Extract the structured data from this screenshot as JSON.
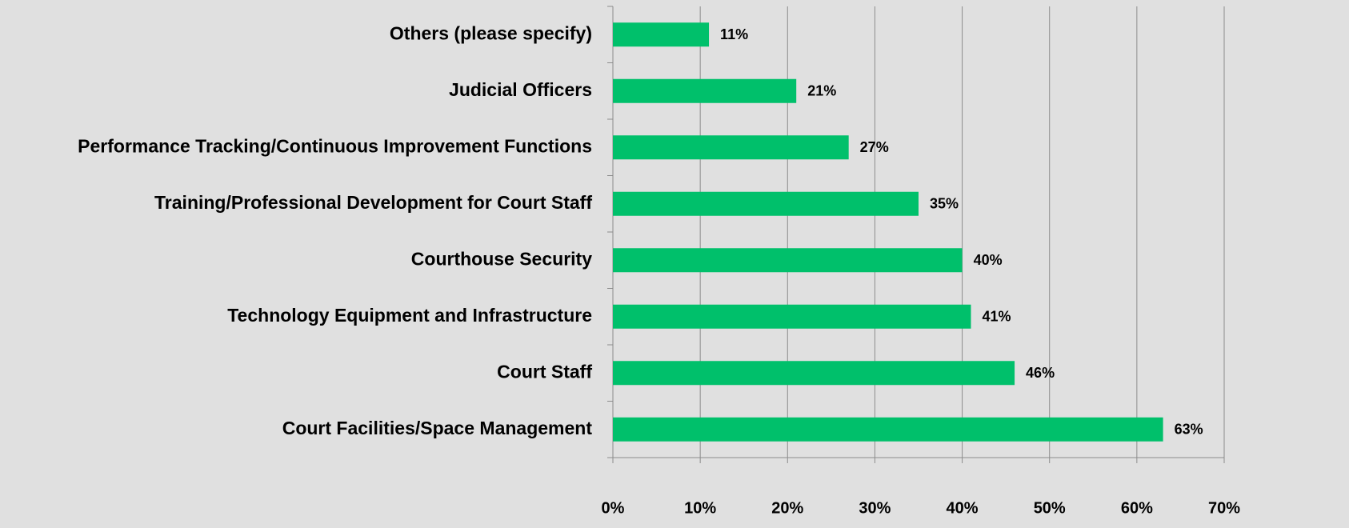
{
  "chart_data": {
    "type": "bar",
    "orientation": "horizontal",
    "categories": [
      "Others (please specify)",
      "Judicial Officers",
      "Performance Tracking/Continuous Improvement Functions",
      "Training/Professional Development for Court Staff",
      "Courthouse Security",
      "Technology Equipment and Infrastructure",
      "Court Staff",
      "Court Facilities/Space Management"
    ],
    "values": [
      11,
      21,
      27,
      35,
      40,
      41,
      46,
      63
    ],
    "value_labels": [
      "11%",
      "21%",
      "27%",
      "35%",
      "40%",
      "41%",
      "46%",
      "63%"
    ],
    "color": "#00c06b",
    "xlim": [
      0,
      70
    ],
    "xticks": [
      {
        "value": 0,
        "label": "0%"
      },
      {
        "value": 10,
        "label": "10%"
      },
      {
        "value": 20,
        "label": "20%"
      },
      {
        "value": 30,
        "label": "30%"
      },
      {
        "value": 40,
        "label": "40%"
      },
      {
        "value": 50,
        "label": "50%"
      },
      {
        "value": 60,
        "label": "60%"
      },
      {
        "value": 70,
        "label": "70%"
      }
    ],
    "grid": true
  }
}
